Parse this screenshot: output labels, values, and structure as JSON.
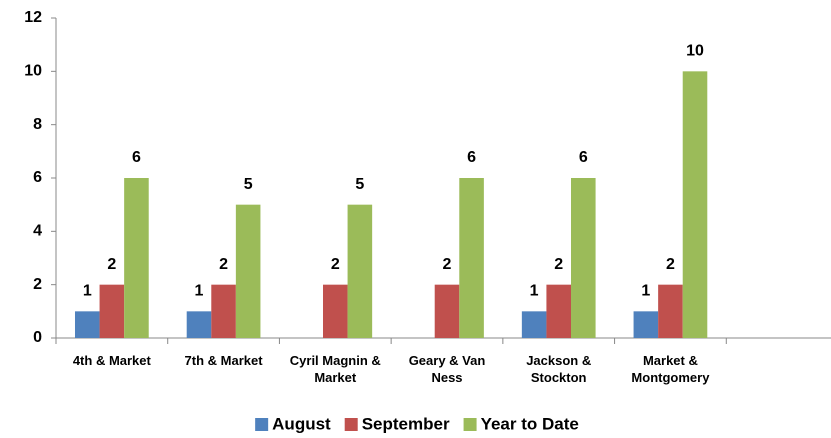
{
  "chart_data": {
    "type": "bar",
    "categories": [
      "4th & Market",
      "7th & Market",
      "Cyril Magnin & Market",
      "Geary & Van Ness",
      "Jackson & Stockton",
      "Market & Montgomery",
      null
    ],
    "series": [
      {
        "name": "August",
        "color": "#4f81bd",
        "values": [
          1,
          1,
          null,
          null,
          1,
          1,
          null
        ]
      },
      {
        "name": "September",
        "color": "#c0504d",
        "values": [
          2,
          2,
          2,
          2,
          2,
          2,
          null
        ]
      },
      {
        "name": "Year to Date",
        "color": "#9bbb59",
        "values": [
          6,
          5,
          5,
          6,
          6,
          10,
          null
        ]
      }
    ],
    "ylim": [
      0,
      12
    ],
    "yticks": [
      0,
      2,
      4,
      6,
      8,
      10,
      12
    ],
    "grid": false,
    "legend": "bottom"
  }
}
